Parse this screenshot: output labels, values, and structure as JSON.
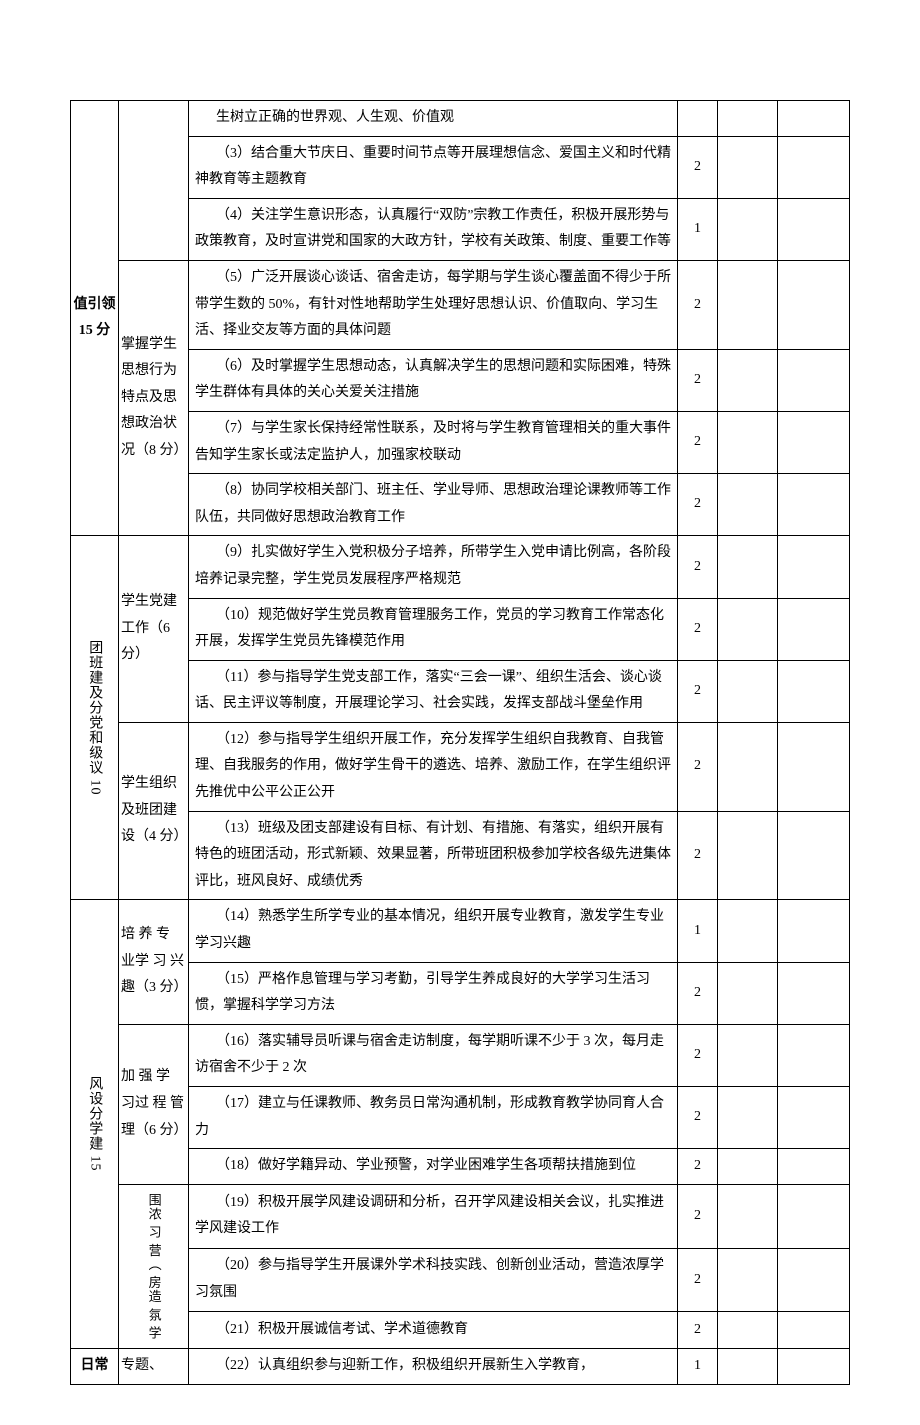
{
  "categories": [
    {
      "label": "值引领 15 分",
      "label_vert": false,
      "subgroups": [
        {
          "label": "",
          "rows": [
            {
              "text": "生树立正确的世界观、人生观、价值观",
              "score": ""
            },
            {
              "text": "（3）结合重大节庆日、重要时间节点等开展理想信念、爱国主义和时代精神教育等主题教育",
              "score": "2"
            },
            {
              "text": "（4）关注学生意识形态，认真履行“双防”宗教工作责任，积极开展形势与政策教育，及时宣讲党和国家的大政方针，学校有关政策、制度、重要工作等",
              "score": "1"
            }
          ]
        },
        {
          "label": "掌握学生思想行为特点及思想政治状况（8 分）",
          "rows": [
            {
              "text": "（5）广泛开展谈心谈话、宿舍走访，每学期与学生谈心覆盖面不得少于所带学生数的 50%，有针对性地帮助学生处理好思想认识、价值取向、学习生活、择业交友等方面的具体问题",
              "score": "2"
            },
            {
              "text": "（6）及时掌握学生思想动态，认真解决学生的思想问题和实际困难，特殊学生群体有具体的关心关爱关注措施",
              "score": "2"
            },
            {
              "text": "（7）与学生家长保持经常性联系，及时将与学生教育管理相关的重大事件告知学生家长或法定监护人，加强家校联动",
              "score": "2"
            },
            {
              "text": "（8）协同学校相关部门、班主任、学业导师、思想政治理论课教师等工作队伍，共同做好思想政治教育工作",
              "score": "2"
            }
          ]
        }
      ]
    },
    {
      "label": "团班建及分党和级议 10",
      "label_vert": true,
      "subgroups": [
        {
          "label": "学生党建工作（6 分）",
          "rows": [
            {
              "text": "（9）扎实做好学生入党积极分子培养，所带学生入党申请比例高，各阶段培养记录完整，学生党员发展程序严格规范",
              "score": "2"
            },
            {
              "text": "（10）规范做好学生党员教育管理服务工作，党员的学习教育工作常态化开展，发挥学生党员先锋模范作用",
              "score": "2"
            },
            {
              "text": "（11）参与指导学生党支部工作，落实“三会一课”、组织生活会、谈心谈话、民主评议等制度，开展理论学习、社会实践，发挥支部战斗堡垒作用",
              "score": "2"
            }
          ]
        },
        {
          "label": "学生组织及班团建设（4 分）",
          "rows": [
            {
              "text": "（12）参与指导学生组织开展工作，充分发挥学生组织自我教育、自我管理、自我服务的作用，做好学生骨干的遴选、培养、激励工作，在学生组织评先推优中公平公正公开",
              "score": "2"
            },
            {
              "text": "（13）班级及团支部建设有目标、有计划、有措施、有落实，组织开展有特色的班团活动，形式新颖、效果显著，所带班团积极参加学校各级先进集体评比，班风良好、成绩优秀",
              "score": "2"
            }
          ]
        }
      ]
    },
    {
      "label": "风设分学建 15",
      "label_vert": true,
      "subgroups": [
        {
          "label": "培 养 专 业学 习 兴 趣（3 分）",
          "rows": [
            {
              "text": "（14）熟悉学生所学专业的基本情况，组织开展专业教育，激发学生专业学习兴趣",
              "score": "1"
            },
            {
              "text": "（15）严格作息管理与学习考勤，引导学生养成良好的大学学习生活习惯，掌握科学学习方法",
              "score": "2"
            }
          ]
        },
        {
          "label": "加 强 学 习过 程 管 理（6 分）",
          "rows": [
            {
              "text": "（16）落实辅导员听课与宿舍走访制度，每学期听课不少于 3 次，每月走访宿舍不少于 2 次",
              "score": "2"
            },
            {
              "text": "（17）建立与任课教师、教务员日常沟通机制，形成教育教学协同育人合力",
              "score": "2"
            },
            {
              "text": "（18）做好学籍异动、学业预警，对学业困难学生各项帮扶措施到位",
              "score": "2"
            }
          ]
        },
        {
          "label": "围浓 习 营（ 房造 氛 学",
          "label_vert_inner": true,
          "rows": [
            {
              "text": "（19）积极开展学风建设调研和分析，召开学风建设相关会议，扎实推进学风建设工作",
              "score": "2"
            },
            {
              "text": "（20）参与指导学生开展课外学术科技实践、创新创业活动，营造浓厚学习氛围",
              "score": "2"
            },
            {
              "text": "（21）积极开展诚信考试、学术道德教育",
              "score": "2"
            }
          ]
        }
      ]
    },
    {
      "label": "日常",
      "label_vert": false,
      "subgroups": [
        {
          "label": "专题、",
          "rows": [
            {
              "text": "（22）认真组织参与迎新工作，积极组织开展新生入学教育，",
              "score": "1"
            }
          ]
        }
      ]
    }
  ]
}
